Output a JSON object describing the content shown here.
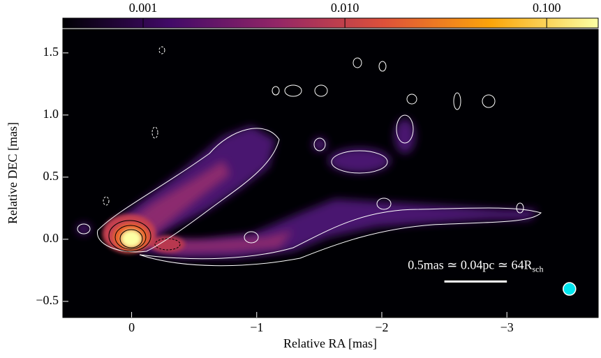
{
  "chart_data": {
    "type": "image",
    "xlabel": "Relative RA [mas]",
    "ylabel": "Relative DEC [mas]",
    "xlim": [
      0.55,
      -3.73
    ],
    "ylim": [
      -0.63,
      1.69
    ],
    "xticks": [
      0,
      {
        "value": -1,
        "label": "−1"
      },
      {
        "value": -2,
        "label": "−2"
      },
      {
        "value": -3,
        "label": "−3"
      }
    ],
    "yticks": [
      {
        "value": -0.5,
        "label": "−0.5"
      },
      {
        "value": 0,
        "label": "0.0"
      },
      0.5,
      {
        "value": 1,
        "label": "1.0"
      },
      1.5
    ],
    "colorbar": {
      "scale": "log",
      "lim": [
        0.0004,
        0.18
      ],
      "ticks": [
        0.001,
        {
          "value": 0.01,
          "label": "0.010"
        },
        {
          "value": 0.1,
          "label": "0.100"
        }
      ],
      "colors": [
        "#000004",
        "#420a68",
        "#932667",
        "#dd513a",
        "#fca50a",
        "#fcffa4"
      ]
    },
    "annotation": {
      "text": "0.5mas ≃ 0.04pc ≃ 64R",
      "subscript": "sch"
    },
    "scalebar": {
      "x": [
        -2.5,
        -3.0
      ],
      "y": -0.34,
      "color": "#ffffff"
    },
    "beam": {
      "x": -3.5,
      "y": -0.4,
      "color": "#00e5ee"
    }
  }
}
